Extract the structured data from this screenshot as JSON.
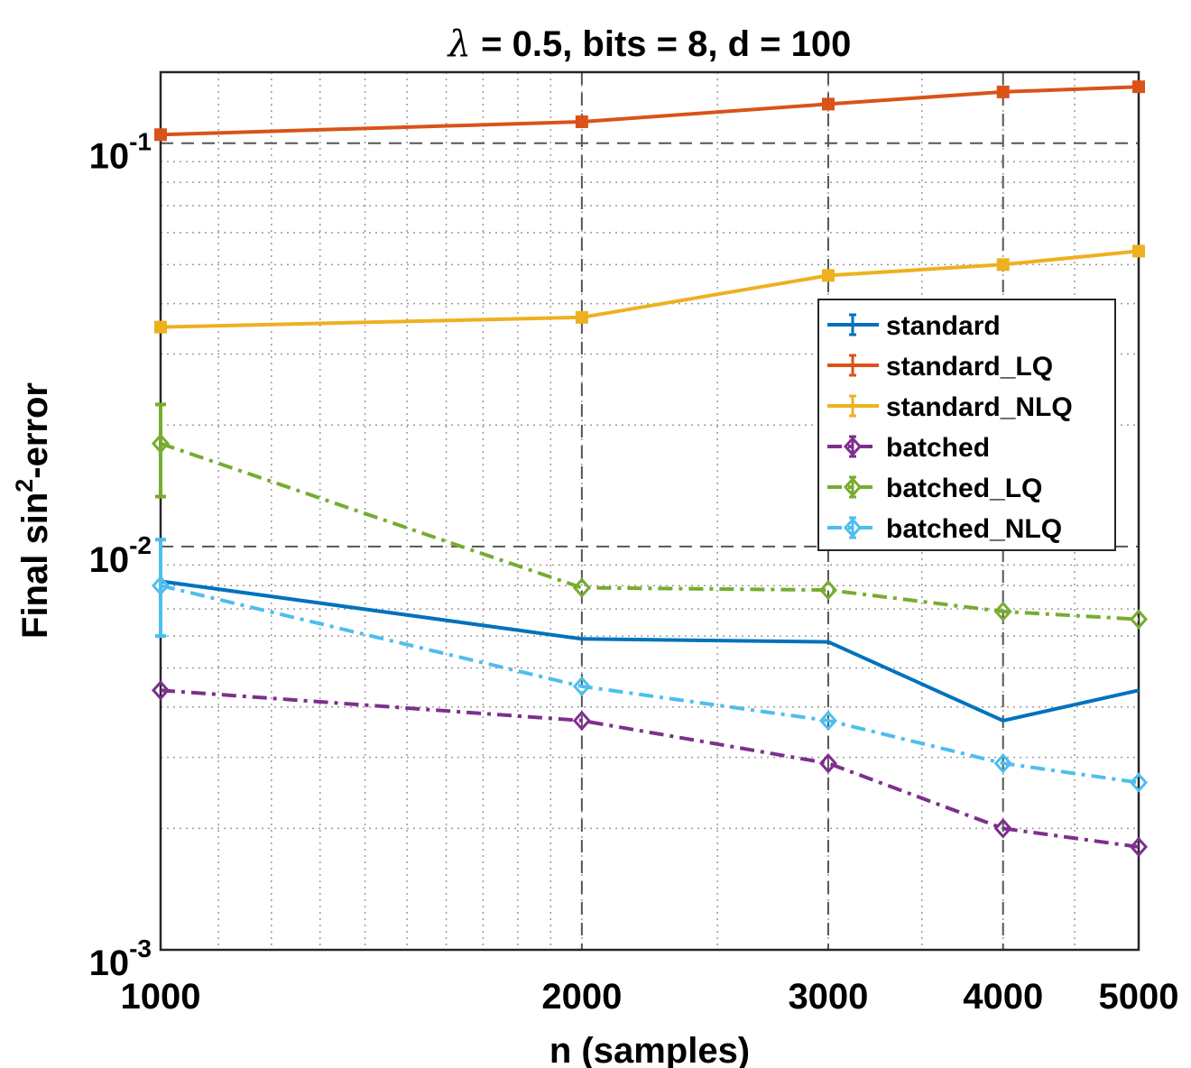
{
  "chart_data": {
    "type": "line",
    "title": "λ = 0.5, bits = 8, d = 100",
    "title_parts": {
      "lambda": "λ",
      "rest": " = 0.5, bits = 8, d = 100"
    },
    "xlabel": "n (samples)",
    "ylabel": "Final sin2-error",
    "ylabel_parts": {
      "pre": "Final sin",
      "sup": "2",
      "post": "-error"
    },
    "x": [
      1000,
      2000,
      3000,
      4000,
      5000
    ],
    "x_ticks": [
      "1000",
      "2000",
      "3000",
      "4000",
      "5000"
    ],
    "xlim": [
      1000,
      5000
    ],
    "x_scale": "log",
    "ylim": [
      0.001,
      0.15
    ],
    "y_scale": "log",
    "y_ticks": [
      {
        "value": 0.1,
        "base": "10",
        "exp": "-1"
      },
      {
        "value": 0.01,
        "base": "10",
        "exp": "-2"
      },
      {
        "value": 0.001,
        "base": "10",
        "exp": "-3"
      }
    ],
    "grid": true,
    "legend_position": "right",
    "series": [
      {
        "name": "standard",
        "color": "#0072BD",
        "dash": "solid",
        "marker": "none",
        "values": [
          0.0082,
          0.0059,
          0.0058,
          0.0037,
          0.0044
        ]
      },
      {
        "name": "standard_LQ",
        "color": "#D95319",
        "dash": "solid",
        "marker": "square",
        "values": [
          0.105,
          0.113,
          0.125,
          0.134,
          0.138
        ]
      },
      {
        "name": "standard_NLQ",
        "color": "#EDB120",
        "dash": "solid",
        "marker": "square",
        "values": [
          0.035,
          0.037,
          0.047,
          0.05,
          0.054
        ]
      },
      {
        "name": "batched",
        "color": "#7E2F8E",
        "dash": "dashdot",
        "marker": "diamond",
        "values": [
          0.0044,
          0.0037,
          0.0029,
          0.002,
          0.0018
        ]
      },
      {
        "name": "batched_LQ",
        "color": "#77AC30",
        "dash": "dashdot",
        "marker": "diamond",
        "values": [
          0.018,
          0.0079,
          0.0078,
          0.0069,
          0.0066
        ],
        "error_low": [
          0.0133,
          null,
          null,
          null,
          null
        ],
        "error_high": [
          0.0225,
          null,
          null,
          null,
          null
        ]
      },
      {
        "name": "batched_NLQ",
        "color": "#4DBEEE",
        "dash": "dashdot",
        "marker": "diamond",
        "values": [
          0.008,
          0.0045,
          0.0037,
          0.0029,
          0.0026
        ],
        "error_low": [
          0.006,
          null,
          null,
          null,
          null
        ],
        "error_high": [
          0.0104,
          null,
          null,
          null,
          null
        ]
      }
    ]
  }
}
